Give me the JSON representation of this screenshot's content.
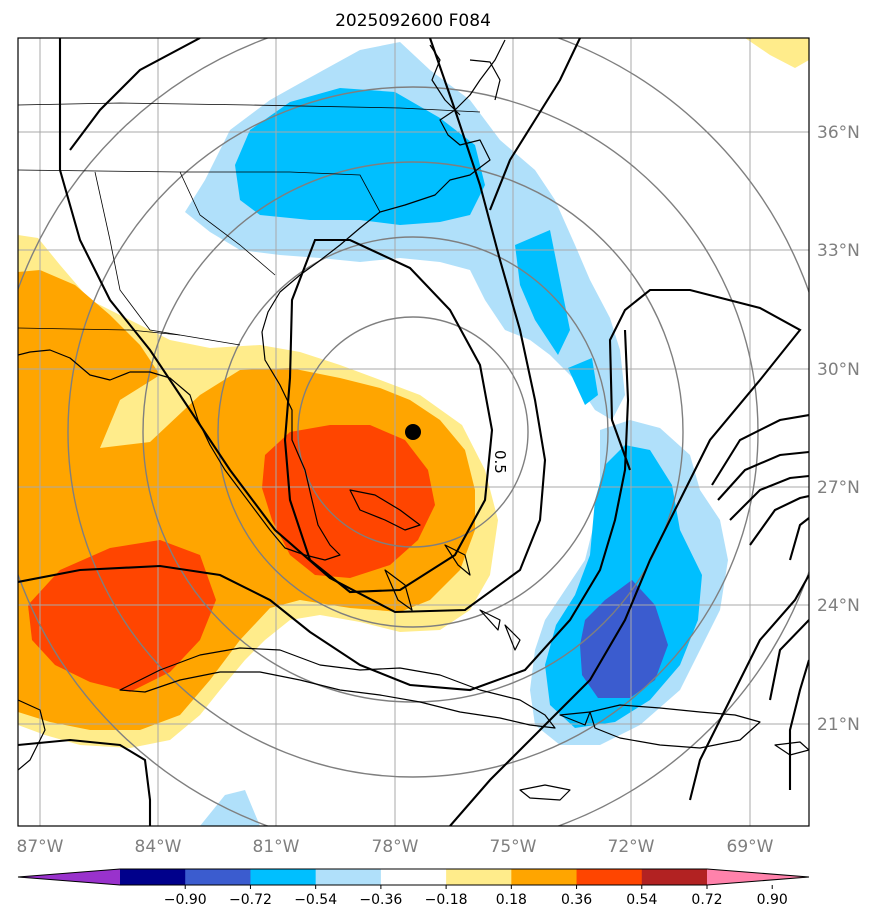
{
  "title": "2025092600 F084",
  "lon_labels": [
    "87°W",
    "84°W",
    "81°W",
    "78°W",
    "75°W",
    "72°W",
    "69°W"
  ],
  "lat_labels": [
    "36°N",
    "33°N",
    "30°N",
    "27°N",
    "24°N",
    "21°N"
  ],
  "contour_label": "0.5",
  "colorbar": {
    "ticks": [
      "−0.90",
      "−0.72",
      "−0.54",
      "−0.36",
      "−0.18",
      "0.18",
      "0.36",
      "0.54",
      "0.72",
      "0.90"
    ],
    "colors": [
      "#9932cc",
      "#00008b",
      "#3b5ccf",
      "#00bfff",
      "#b0e0fa",
      "#ffffff",
      "#ffec8b",
      "#ffa500",
      "#ff4500",
      "#b22222",
      "#ff82ab"
    ]
  },
  "map_extent": {
    "lon": [
      -87.5,
      -67.5
    ],
    "lat": [
      18.5,
      38.5
    ]
  },
  "storm_center": {
    "lon": -77.7,
    "lat": 28.4
  }
}
